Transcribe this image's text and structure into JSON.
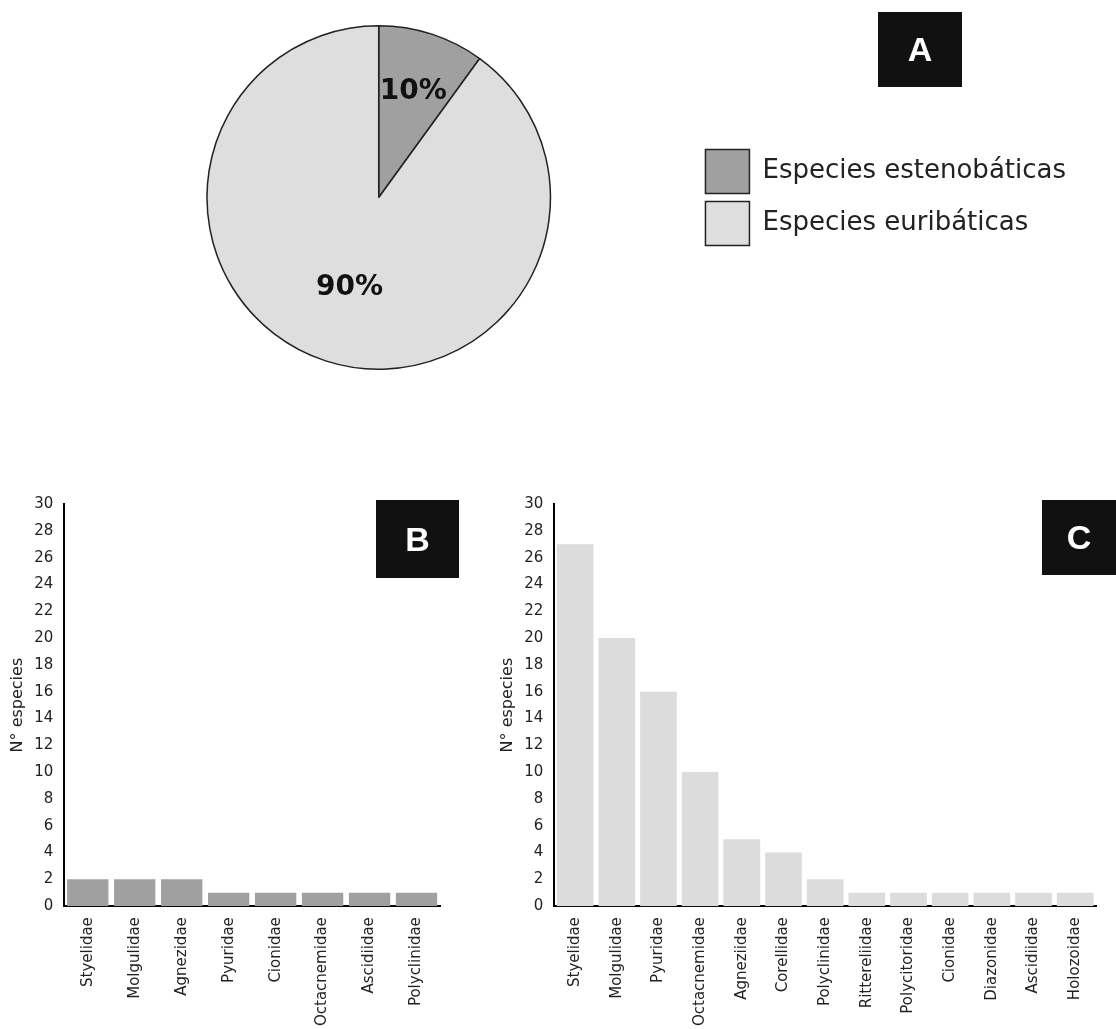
{
  "chart_data": [
    {
      "type": "pie",
      "title": "A",
      "categories": [
        "Especies estenobáticas",
        "Especies euribáticas"
      ],
      "values": [
        10,
        90
      ],
      "colors": [
        "#a0a0a0",
        "#dedede"
      ],
      "value_labels": [
        "10%",
        "90%"
      ],
      "legend": "right"
    },
    {
      "type": "bar",
      "title": "B",
      "ylabel": "N° especies",
      "categories": [
        "Styelidae",
        "Molgulidae",
        "Agnezidae",
        "Pyuridae",
        "Cionidae",
        "Octacnemidae",
        "Ascidiidae",
        "Polyclinidae"
      ],
      "values": [
        2,
        2,
        2,
        1,
        1,
        1,
        1,
        1
      ],
      "color": "#a0a0a0",
      "ylim": [
        0,
        30
      ],
      "yticks": [
        0,
        2,
        4,
        6,
        8,
        10,
        12,
        14,
        16,
        18,
        20,
        22,
        24,
        26,
        28,
        30
      ],
      "grid": false,
      "legend": false
    },
    {
      "type": "bar",
      "title": "C",
      "ylabel": "N° especies",
      "categories": [
        "Styelidae",
        "Molgulidae",
        "Pyuridae",
        "Octacnemidae",
        "Agneziidae",
        "Corellidae",
        "Polyclinidae",
        "Rittereliidae",
        "Polycitoridae",
        "Cionidae",
        "Diazonidae",
        "Ascidiidae",
        "Holozoidae"
      ],
      "values": [
        27,
        20,
        16,
        10,
        5,
        4,
        2,
        1,
        1,
        1,
        1,
        1,
        1
      ],
      "color": "#dcdcdc",
      "ylim": [
        0,
        30
      ],
      "yticks": [
        0,
        2,
        4,
        6,
        8,
        10,
        12,
        14,
        16,
        18,
        20,
        22,
        24,
        26,
        28,
        30
      ],
      "grid": false,
      "legend": false
    }
  ]
}
